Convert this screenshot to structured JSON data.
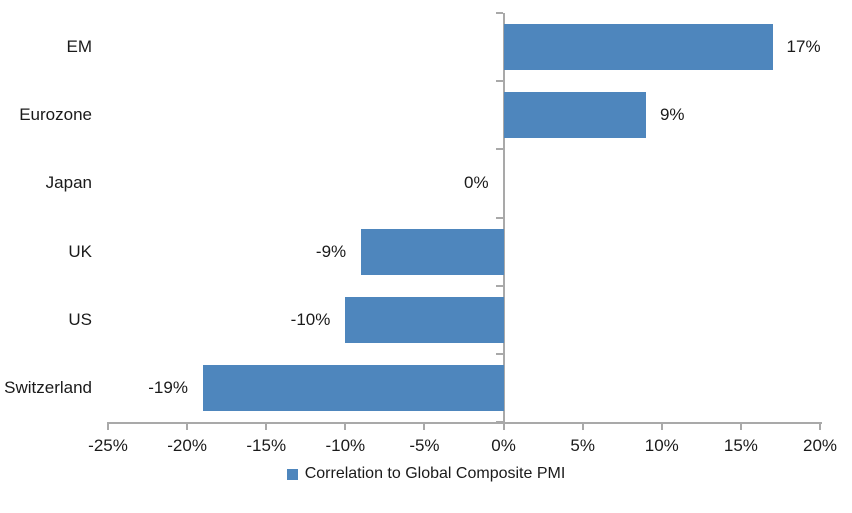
{
  "chart_data": {
    "type": "bar",
    "orientation": "horizontal",
    "title": "",
    "categories": [
      "EM",
      "Eurozone",
      "Japan",
      "UK",
      "US",
      "Switzerland"
    ],
    "values": [
      17,
      9,
      0,
      -9,
      -10,
      -19
    ],
    "value_labels": [
      "17%",
      "9%",
      "0%",
      "-9%",
      "-10%",
      "-19%"
    ],
    "legend_label": "Correlation to Global Composite PMI",
    "legend_position": "bottom-center",
    "xlim": [
      -25,
      20
    ],
    "x_ticks": [
      -25,
      -20,
      -15,
      -10,
      -5,
      0,
      5,
      10,
      15,
      20
    ],
    "x_tick_labels": [
      "-25%",
      "-20%",
      "-15%",
      "-10%",
      "-5%",
      "0%",
      "5%",
      "10%",
      "15%",
      "20%"
    ],
    "grid": false,
    "colors": {
      "bar": "#4E86BD",
      "axis": "#A9A9A9",
      "text": "#1A1A1A",
      "background": "#FFFFFF"
    }
  }
}
